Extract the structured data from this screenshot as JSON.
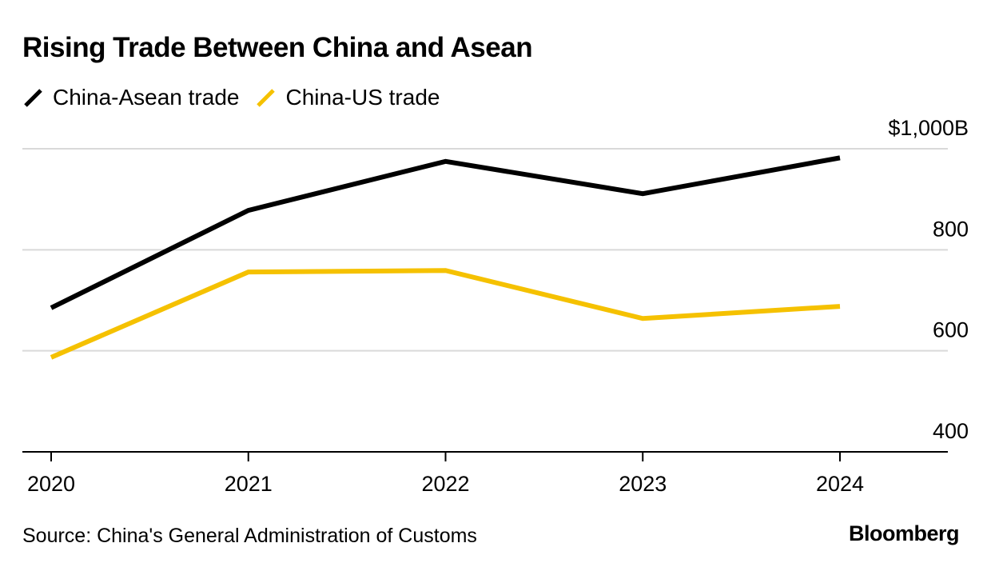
{
  "header": {
    "title": "Rising Trade Between China and Asean"
  },
  "footer": {
    "source": "Source: China's General Administration of Customs",
    "logo": "Bloomberg"
  },
  "colors": {
    "china_asean": "#000000",
    "china_us": "#f5c100",
    "grid": "#d9d9d9",
    "axis": "#000000"
  },
  "chart_data": {
    "type": "line",
    "title": "Rising Trade Between China and Asean",
    "xlabel": "",
    "ylabel": "",
    "categories": [
      "2020",
      "2021",
      "2022",
      "2023",
      "2024"
    ],
    "series": [
      {
        "name": "China-Asean trade",
        "color": "#000000",
        "values": [
          685,
          878,
          975,
          911,
          982
        ]
      },
      {
        "name": "China-US trade",
        "color": "#f5c100",
        "values": [
          587,
          756,
          759,
          664,
          688
        ]
      }
    ],
    "ylim": [
      400,
      1000
    ],
    "yticks": [
      1000,
      800,
      600,
      400
    ],
    "ytick_labels": [
      "$1,000B",
      "800",
      "600",
      "400"
    ],
    "grid": true,
    "legend": "top-left",
    "y_axis_side": "right"
  }
}
